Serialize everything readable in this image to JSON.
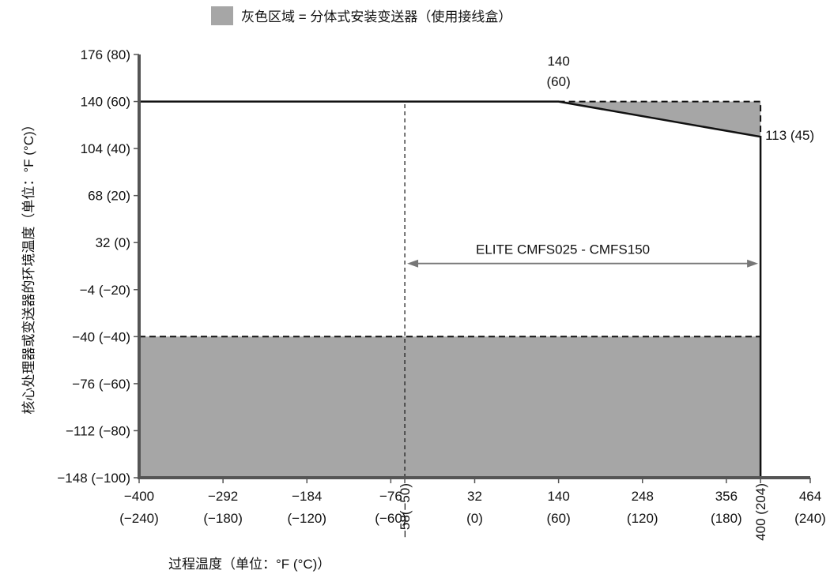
{
  "chart_data": {
    "type": "area",
    "xlabel": "过程温度（单位：°F (°C)）",
    "ylabel": "核心处理器或变送器的环境温度（单位：°F (°C)）",
    "xlim": [
      -400,
      464
    ],
    "ylim": [
      -148,
      176
    ],
    "x_ticks": [
      {
        "value": -400,
        "top": "−400",
        "bottom": "(−240)"
      },
      {
        "value": -292,
        "top": "−292",
        "bottom": "(−180)"
      },
      {
        "value": -184,
        "top": "−184",
        "bottom": "(−120)"
      },
      {
        "value": -76,
        "top": "−76",
        "bottom": "(−60)"
      },
      {
        "value": 32,
        "top": "32",
        "bottom": "(0)"
      },
      {
        "value": 140,
        "top": "140",
        "bottom": "(60)"
      },
      {
        "value": 248,
        "top": "248",
        "bottom": "(120)"
      },
      {
        "value": 356,
        "top": "356",
        "bottom": "(180)"
      },
      {
        "value": 464,
        "top": "464",
        "bottom": "(240)"
      }
    ],
    "x_special_ticks": [
      {
        "value": -58,
        "label": "−58(−50)"
      },
      {
        "value": 400,
        "label": "400 (204)"
      }
    ],
    "y_ticks": [
      {
        "value": 176,
        "label": "176 (80)"
      },
      {
        "value": 140,
        "label": "140 (60)"
      },
      {
        "value": 104,
        "label": "104 (40)"
      },
      {
        "value": 68,
        "label": "68 (20)"
      },
      {
        "value": 32,
        "label": "32 (0)"
      },
      {
        "value": -4,
        "label": "−4 (−20)"
      },
      {
        "value": -40,
        "label": "−40 (−40)"
      },
      {
        "value": -76,
        "label": "−76 (−60)"
      },
      {
        "value": -112,
        "label": "−112 (−80)"
      },
      {
        "value": -148,
        "label": "−148 (−100)"
      }
    ],
    "legend": {
      "label": "灰色区域 = 分体式安装变送器（使用接线盒）",
      "color": "#a6a6a6",
      "position": "top-center"
    },
    "operating_envelope": [
      [
        -400,
        140
      ],
      [
        140,
        140
      ],
      [
        400,
        113
      ],
      [
        400,
        -148
      ]
    ],
    "gray_regions": [
      {
        "name": "lower-gray-region",
        "points": [
          [
            -400,
            -148
          ],
          [
            400,
            -148
          ],
          [
            400,
            -40
          ],
          [
            -400,
            -40
          ]
        ]
      },
      {
        "name": "upper-gray-region",
        "points": [
          [
            140,
            140
          ],
          [
            400,
            140
          ],
          [
            400,
            113
          ]
        ]
      }
    ],
    "dashed_lines": [
      {
        "name": "lower-dashed-line",
        "points": [
          [
            -400,
            -40
          ],
          [
            400,
            -40
          ]
        ]
      },
      {
        "name": "upper-dashed-line",
        "points": [
          [
            140,
            140
          ],
          [
            400,
            140
          ],
          [
            400,
            113
          ]
        ]
      },
      {
        "name": "vertical-dashed-line",
        "points": [
          [
            -58,
            -148
          ],
          [
            -58,
            140
          ]
        ]
      }
    ],
    "range_arrow": {
      "label": "ELITE CMFS025 - CMFS150",
      "x_start": -58,
      "x_end": 400,
      "y": 16
    },
    "annotations": [
      {
        "name": "annotation-140-60",
        "lines": [
          "140",
          "(60)"
        ],
        "x": 140,
        "y": 140
      },
      {
        "name": "annotation-113-45",
        "lines": [
          "113 (45)"
        ],
        "x": 400,
        "y": 113
      }
    ],
    "grid": false,
    "colors": {
      "gray": "#a6a6a6",
      "line": "#111111"
    }
  }
}
